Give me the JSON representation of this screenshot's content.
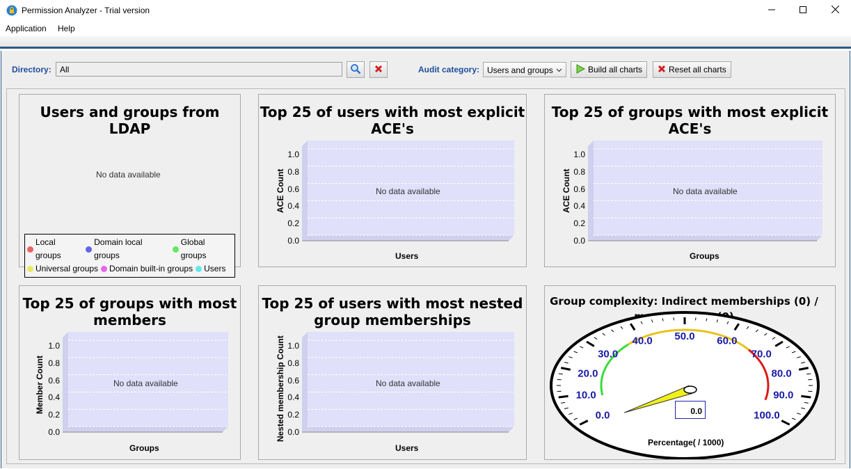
{
  "window": {
    "title": "Permission Analyzer - Trial version",
    "controls": {
      "minimize": "minimize-icon",
      "maximize": "maximize-icon",
      "close": "close-icon"
    }
  },
  "menu": {
    "items": [
      "Application",
      "Help"
    ]
  },
  "toolbar": {
    "directory_label": "Directory:",
    "directory_value": "All",
    "search_icon": "search-icon",
    "clear_icon": "clear-icon",
    "audit_label": "Audit category:",
    "audit_value": "Users and groups",
    "build_label": "Build all charts",
    "reset_label": "Reset all charts"
  },
  "colors": {
    "accent": "#1f4e99",
    "plot_bg": "#e0e0fa",
    "local_groups": "#e86464",
    "domain_local_groups": "#6464e8",
    "global_groups": "#64e864",
    "universal_groups": "#e8e864",
    "domain_builtin_groups": "#e864e8",
    "users": "#64e8e8"
  },
  "panels": {
    "ldap": {
      "title": "Users and groups from LDAP",
      "nodata": "No data available",
      "legend": [
        "Local groups",
        "Domain local groups",
        "Global groups",
        "Universal groups",
        "Domain built-in groups",
        "Users"
      ]
    },
    "users_ace": {
      "title_l1": "Top 25 of users with most explicit",
      "title_l2": "ACE's",
      "ylabel": "ACE Count",
      "xlabel": "Users",
      "nodata": "No data available"
    },
    "groups_ace": {
      "title_l1": "Top 25 of groups with most explicit",
      "title_l2": "ACE's",
      "ylabel": "ACE Count",
      "xlabel": "Groups",
      "nodata": "No data available"
    },
    "groups_members": {
      "title_l1": "Top 25 of groups with most",
      "title_l2": "members",
      "ylabel": "Member Count",
      "xlabel": "Groups",
      "nodata": "No data available"
    },
    "users_nested": {
      "title_l1": "Top 25 of users with most nested",
      "title_l2": "group memberships",
      "ylabel": "Nested membership Count",
      "xlabel": "Users",
      "nodata": "No data available"
    },
    "gauge": {
      "title_l1": "Group complexity: Indirect memberships (0) / all",
      "title_l2": "memberships (0)",
      "value_display": "0.0",
      "unit_label": "Percentage( / 1000)"
    }
  },
  "chart_data": [
    {
      "type": "bar",
      "title": "Top 25 of users with most explicit ACE's",
      "xlabel": "Users",
      "ylabel": "ACE Count",
      "yticks": [
        "0.0",
        "0.2",
        "0.4",
        "0.6",
        "0.8",
        "1.0"
      ],
      "ylim": [
        0,
        1
      ],
      "series": []
    },
    {
      "type": "bar",
      "title": "Top 25 of groups with most explicit ACE's",
      "xlabel": "Groups",
      "ylabel": "ACE Count",
      "yticks": [
        "0.0",
        "0.2",
        "0.4",
        "0.6",
        "0.8",
        "1.0"
      ],
      "ylim": [
        0,
        1
      ],
      "series": []
    },
    {
      "type": "bar",
      "title": "Top 25 of groups with most members",
      "xlabel": "Groups",
      "ylabel": "Member Count",
      "yticks": [
        "0.0",
        "0.2",
        "0.4",
        "0.6",
        "0.8",
        "1.0"
      ],
      "ylim": [
        0,
        1
      ],
      "series": []
    },
    {
      "type": "bar",
      "title": "Top 25 of users with most nested group memberships",
      "xlabel": "Users",
      "ylabel": "Nested membership Count",
      "yticks": [
        "0.0",
        "0.2",
        "0.4",
        "0.6",
        "0.8",
        "1.0"
      ],
      "ylim": [
        0,
        1
      ],
      "series": []
    },
    {
      "type": "gauge",
      "title": "Group complexity: Indirect memberships (0) / all memberships (0)",
      "value": 0.0,
      "range": [
        0,
        100
      ],
      "ticks": [
        "0.0",
        "10.0",
        "20.0",
        "30.0",
        "40.0",
        "50.0",
        "60.0",
        "70.0",
        "80.0",
        "90.0",
        "100.0"
      ],
      "unit": "Percentage( / 1000)"
    }
  ]
}
